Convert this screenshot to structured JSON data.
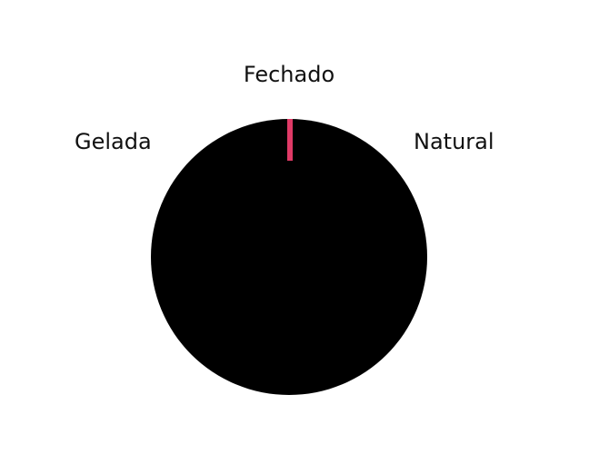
{
  "selector": {
    "options": [
      {
        "label": "Fechado",
        "position": "top"
      },
      {
        "label": "Gelada",
        "position": "top-left"
      },
      {
        "label": "Natural",
        "position": "top-right"
      }
    ],
    "dial_color": "#000000",
    "indicator_color": "#e03a66"
  }
}
